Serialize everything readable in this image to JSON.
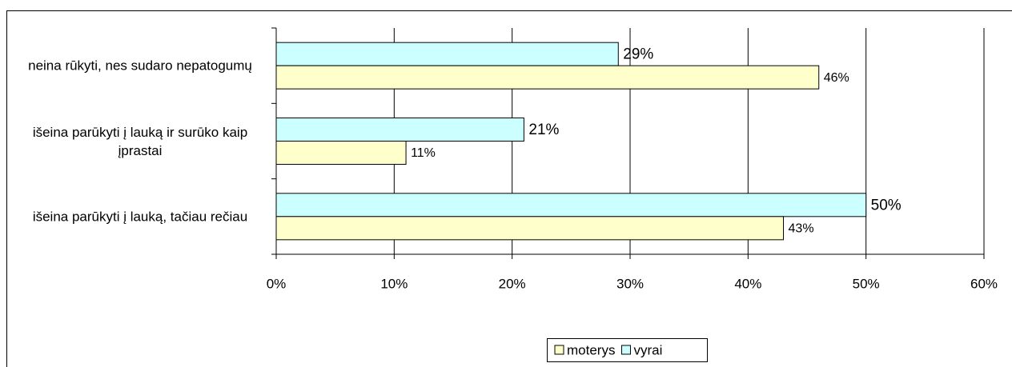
{
  "chart_data": {
    "type": "hbar",
    "categories": [
      "neina rūkyti, nes sudaro nepatogumų",
      "išeina parūkyti į lauką ir surūko kaip įprastai",
      "išeina parūkyti į lauką, tačiau rečiau"
    ],
    "series": [
      {
        "name": "moterys",
        "color": "#ffffcc",
        "values": [
          46,
          11,
          43
        ],
        "value_labels": [
          "46%",
          "11%",
          "43%"
        ]
      },
      {
        "name": "vyrai",
        "color": "#ccffff",
        "values": [
          29,
          21,
          50
        ],
        "value_labels": [
          "29%",
          "21%",
          "50%"
        ]
      }
    ],
    "xlim": [
      0,
      60
    ],
    "xticks": [
      {
        "value": 0,
        "label": "0%"
      },
      {
        "value": 10,
        "label": "10%"
      },
      {
        "value": 20,
        "label": "20%"
      },
      {
        "value": 30,
        "label": "30%"
      },
      {
        "value": 40,
        "label": "40%"
      },
      {
        "value": 50,
        "label": "50%"
      },
      {
        "value": 60,
        "label": "60%"
      }
    ],
    "grid": true,
    "legend": "bottom"
  }
}
